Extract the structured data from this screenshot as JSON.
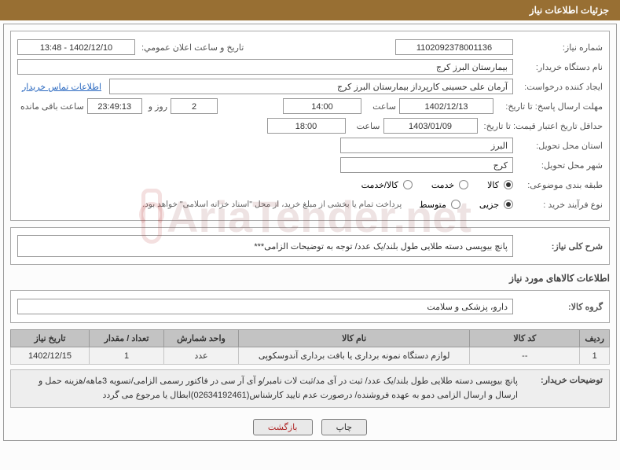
{
  "header": {
    "title": "جزئیات اطلاعات نیاز"
  },
  "panel1": {
    "need_no_label": "شماره نیاز:",
    "need_no": "1102092378001136",
    "announce_label": "تاریخ و ساعت اعلان عمومي:",
    "announce_value": "1402/12/10 - 13:48",
    "buyer_org_label": "نام دستگاه خریدار:",
    "buyer_org": "بیمارستان البرز کرج",
    "requester_label": "ایجاد کننده درخواست:",
    "requester": "آرمان علی حسینی کارپرداز بیمارستان البرز کرج",
    "contact_link": "اطلاعات تماس خریدار",
    "reply_deadline_label": "مهلت ارسال پاسخ: تا تاریخ:",
    "reply_date": "1402/12/13",
    "time_label": "ساعت",
    "reply_time": "14:00",
    "days": "2",
    "days_label": "روز و",
    "remaining_time": "23:49:13",
    "remaining_label": "ساعت باقی مانده",
    "min_price_label": "حداقل تاریخ اعتبار قیمت: تا تاریخ:",
    "min_price_date": "1403/01/09",
    "min_price_time": "18:00",
    "delivery_province_label": "استان محل تحویل:",
    "delivery_province": "البرز",
    "delivery_city_label": "شهر محل تحویل:",
    "delivery_city": "کرج",
    "subject_cat_label": "طبقه بندی موضوعی:",
    "radio_kala": "کالا",
    "radio_khadamat": "خدمت",
    "radio_kalakhadamat": "کالا/خدمت",
    "purchase_process_label": "نوع فرآیند خرید :",
    "radio_small": "جزیی",
    "radio_medium": "متوسط",
    "purchase_note": "پرداخت تمام یا بخشی از مبلغ خرید، از محل \"اسناد خزانه اسلامی\" خواهد بود."
  },
  "panel2": {
    "need_desc_label": "شرح کلی نیاز:",
    "need_desc": "پانچ بیوپسی دسته طلایی طول بلند/یک عدد/ توجه به توضیحات الزامی***"
  },
  "goods_section_title": "اطلاعات کالاهای مورد نیاز",
  "panel3": {
    "group_label": "گروه کالا:",
    "group_value": "دارو، پزشکی و سلامت"
  },
  "table": {
    "headers": [
      "ردیف",
      "کد کالا",
      "نام کالا",
      "واحد شمارش",
      "تعداد / مقدار",
      "تاریخ نیاز"
    ],
    "col_widths": [
      "36px",
      "140px",
      "auto",
      "95px",
      "95px",
      "100px"
    ],
    "header_bg": "#c3c3c3",
    "row_bg": "#f2f2f2",
    "rows": [
      [
        "1",
        "--",
        "لوازم دستگاه نمونه برداری یا بافت برداری آندوسکوپی",
        "عدد",
        "1",
        "1402/12/15"
      ]
    ]
  },
  "buyer_notes": {
    "label": "توضیحات خریدار:",
    "text": "پانچ بیوپسی دسته طلایی طول بلند/یک عدد/ ثبت در آی مد/ثبت لات نامبر/و آی آر سی در فاکتور رسمی الزامی/تسویه 3ماهه/هزینه حمل و ارسال و ارسال الزامی دمو به عهده فروشنده/ درصورت عدم تایید کارشناس(02634192461)ابطال یا مرجوع می گردد"
  },
  "buttons": {
    "print": "چاپ",
    "back": "بازگشت"
  },
  "colors": {
    "header_bg": "#986f33",
    "border": "#aaaaaa",
    "link": "#2968c0",
    "btn_danger": "#b02a2a"
  },
  "watermark": "AriaTender.net"
}
